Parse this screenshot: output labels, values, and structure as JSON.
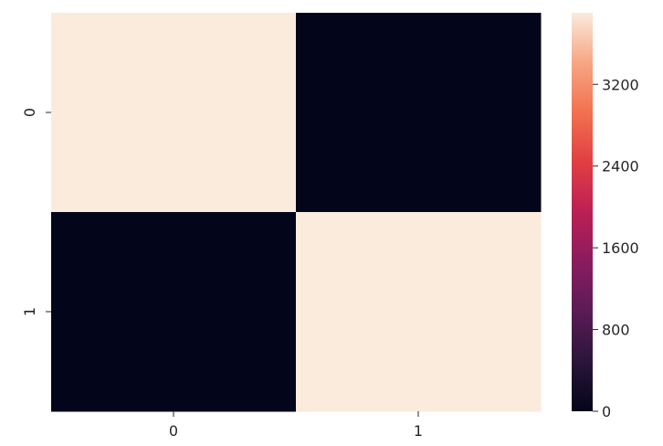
{
  "chart_data": {
    "type": "heatmap",
    "x_categories": [
      "0",
      "1"
    ],
    "y_categories": [
      "0",
      "1"
    ],
    "values": [
      [
        3900,
        0
      ],
      [
        0,
        3900
      ]
    ],
    "colorbar": {
      "min": 0,
      "max": 3900,
      "ticks": [
        0,
        800,
        1600,
        2400,
        3200
      ],
      "tick_labels": [
        "0",
        "800",
        "1600",
        "2400",
        "3200"
      ]
    },
    "colormap": "rocket",
    "colors": {
      "low": "#03051a",
      "high": "#faebdd"
    },
    "title": "",
    "xlabel": "",
    "ylabel": "",
    "grid": false
  }
}
